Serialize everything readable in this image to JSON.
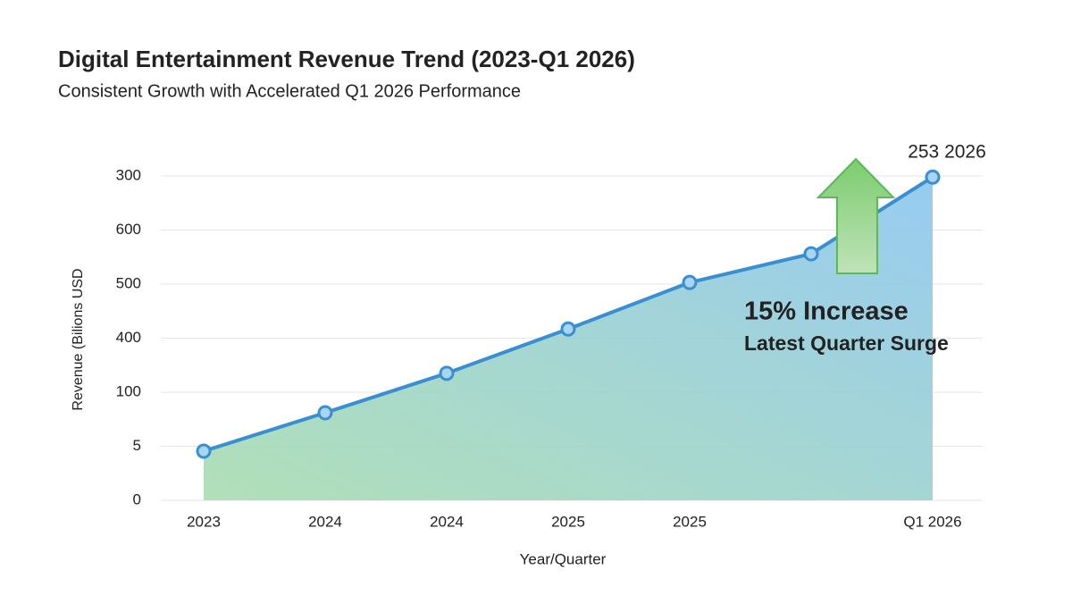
{
  "chart_data": {
    "type": "line",
    "title": "Digital Entertainment Revenue Trend (2023-Q1 2026)",
    "subtitle": "Consistent Growth with Accelerated Q1 2026 Performance",
    "x_label": "Year/Quarter",
    "y_label": "Revenue (Bilions USD",
    "categories": [
      "2023",
      "2024",
      "2024",
      "2025",
      "2025",
      null,
      "Q1 2026"
    ],
    "series": [
      {
        "name": "Revenue",
        "color": "#3a8fd0",
        "values": [
          0.91,
          1.62,
          2.35,
          3.17,
          4.03,
          4.56,
          5.98
        ]
      }
    ],
    "ylim": [
      0,
      6
    ],
    "yticks": [
      0,
      {
        "value": 1,
        "label": "5"
      },
      {
        "value": 2,
        "label": "100"
      },
      {
        "value": 3,
        "label": "400"
      },
      {
        "value": 4,
        "label": "500"
      },
      {
        "value": 5,
        "label": "600"
      },
      {
        "value": 6,
        "label": "300"
      }
    ],
    "grid": true,
    "point_label": "253 2026",
    "annotation_title": "15% Increase",
    "annotation_subtitle": "Latest Quarter Surge"
  }
}
